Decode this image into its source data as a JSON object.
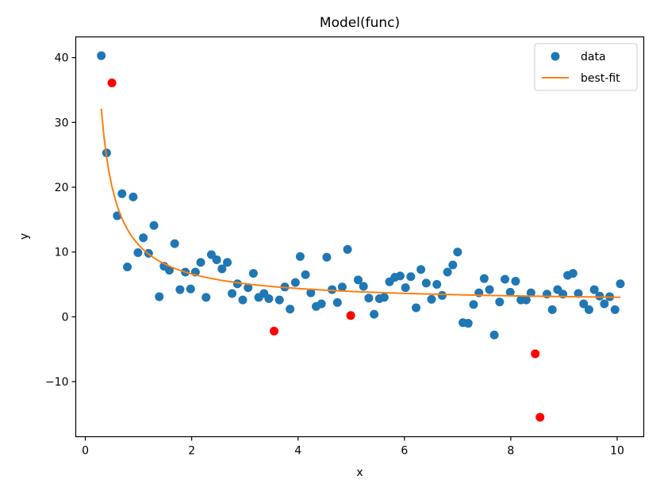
{
  "chart_data": {
    "type": "scatter",
    "title": "Model(func)",
    "xlabel": "x",
    "ylabel": "y",
    "xlim": [
      -0.18,
      10.5
    ],
    "ylim": [
      -18.5,
      43.2
    ],
    "xticks": [
      0,
      2,
      4,
      6,
      8,
      10
    ],
    "xtick_labels": [
      "0",
      "2",
      "4",
      "6",
      "8",
      "10"
    ],
    "yticks": [
      -10,
      0,
      10,
      20,
      30,
      40
    ],
    "ytick_labels": [
      "−10",
      "0",
      "10",
      "20",
      "30",
      "40"
    ],
    "grid": false,
    "legend_position": "top-right",
    "colors": {
      "data": "#1f77b4",
      "fit": "#ff7f0e",
      "outlier": "#ff0000"
    },
    "series": [
      {
        "name": "data",
        "kind": "points",
        "x": [
          0.3,
          0.4,
          0.6,
          0.69,
          0.79,
          0.9,
          0.99,
          1.09,
          1.19,
          1.29,
          1.39,
          1.48,
          1.58,
          1.68,
          1.78,
          1.88,
          1.98,
          2.07,
          2.17,
          2.27,
          2.37,
          2.47,
          2.57,
          2.67,
          2.76,
          2.86,
          2.96,
          3.06,
          3.16,
          3.26,
          3.36,
          3.45,
          3.65,
          3.75,
          3.85,
          3.95,
          4.04,
          4.14,
          4.24,
          4.34,
          4.44,
          4.54,
          4.64,
          4.74,
          4.83,
          4.93,
          5.13,
          5.23,
          5.33,
          5.43,
          5.53,
          5.62,
          5.72,
          5.82,
          5.92,
          6.02,
          6.12,
          6.22,
          6.31,
          6.41,
          6.51,
          6.61,
          6.71,
          6.81,
          6.91,
          7.0,
          7.1,
          7.2,
          7.3,
          7.4,
          7.5,
          7.6,
          7.69,
          7.79,
          7.89,
          7.99,
          8.09,
          8.19,
          8.29,
          8.38,
          8.68,
          8.78,
          8.88,
          8.98,
          9.07,
          9.17,
          9.27,
          9.37,
          9.47,
          9.57,
          9.67,
          9.76,
          9.86,
          9.96,
          10.06
        ],
        "y": [
          40.3,
          25.3,
          15.6,
          19.0,
          7.7,
          18.5,
          9.9,
          12.2,
          9.8,
          14.1,
          3.1,
          7.8,
          7.2,
          11.3,
          4.2,
          6.9,
          4.3,
          6.9,
          8.4,
          3.0,
          9.6,
          8.8,
          7.4,
          8.4,
          3.6,
          5.1,
          2.6,
          4.5,
          6.7,
          3.0,
          3.6,
          2.8,
          2.6,
          4.6,
          1.2,
          5.3,
          9.3,
          6.5,
          3.7,
          1.6,
          2.0,
          9.2,
          4.2,
          2.2,
          4.6,
          10.4,
          5.7,
          4.7,
          2.9,
          0.4,
          2.8,
          3.0,
          5.4,
          6.1,
          6.3,
          4.5,
          6.2,
          1.4,
          7.3,
          5.2,
          2.7,
          5.0,
          3.3,
          6.9,
          8.0,
          10.0,
          -0.9,
          -1.0,
          1.9,
          3.7,
          5.9,
          4.2,
          -2.8,
          2.3,
          5.8,
          3.8,
          5.5,
          2.6,
          2.6,
          3.7,
          3.5,
          1.1,
          4.2,
          3.5,
          6.4,
          6.7,
          3.6,
          2.0,
          1.1,
          4.2,
          3.2,
          2.0,
          3.1,
          1.1,
          5.1
        ]
      },
      {
        "name": "best-fit",
        "kind": "curve",
        "formula_a": 9.0,
        "formula_b": 2.12,
        "x_range": [
          0.3,
          10.06
        ],
        "n_samples": 200
      },
      {
        "kind": "points",
        "x": [
          0.5,
          3.55,
          4.99,
          8.46,
          8.55
        ],
        "y": [
          36.1,
          -2.2,
          0.2,
          -5.7,
          -15.5
        ]
      }
    ]
  }
}
